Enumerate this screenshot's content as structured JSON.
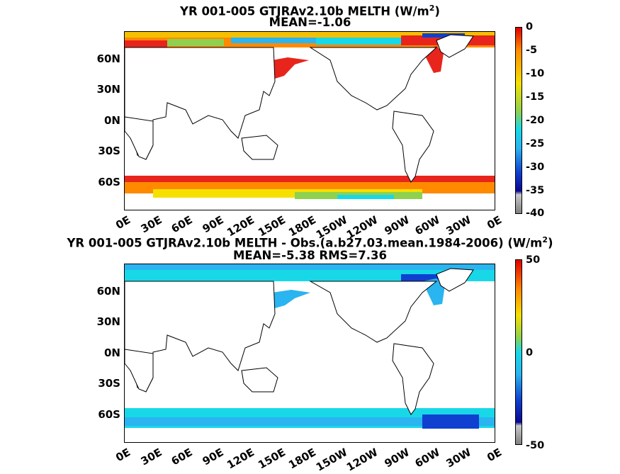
{
  "panel_top": {
    "title_line1": "YR 001-005 GTJRAv2.10b  MELTH (W/m",
    "title_sup": "2",
    "title_close": ")",
    "title_line2": "MEAN=-1.06",
    "colorbar_ticks": [
      "0",
      "-5",
      "-10",
      "-15",
      "-20",
      "-25",
      "-30",
      "-35",
      "-40"
    ],
    "colorbar_range": [
      -40,
      0
    ]
  },
  "panel_bottom": {
    "title_line1": "YR 001-005 GTJRAv2.10b MELTH - Obs.(a.b27.03.mean.1984-2006) (W/m",
    "title_sup": "2",
    "title_close": ")",
    "title_line2": "MEAN=-5.38 RMS=7.36",
    "colorbar_ticks": [
      "50",
      "0",
      "-50"
    ],
    "colorbar_range": [
      -50,
      50
    ]
  },
  "lat_labels": [
    "60N",
    "30N",
    "0N",
    "30S",
    "60S"
  ],
  "lon_labels": [
    "0E",
    "30E",
    "60E",
    "90E",
    "120E",
    "150E",
    "180E",
    "150W",
    "120W",
    "90W",
    "60W",
    "30W",
    "0E"
  ],
  "colors": {
    "red": "#e8251c",
    "orange": "#ff8a00",
    "yellow": "#f5e000",
    "green": "#8fd14f",
    "cyan": "#18d8e8",
    "lightblue": "#2ab4f0",
    "blue": "#1040d0",
    "navy": "#080890",
    "gray": "#808080"
  }
}
